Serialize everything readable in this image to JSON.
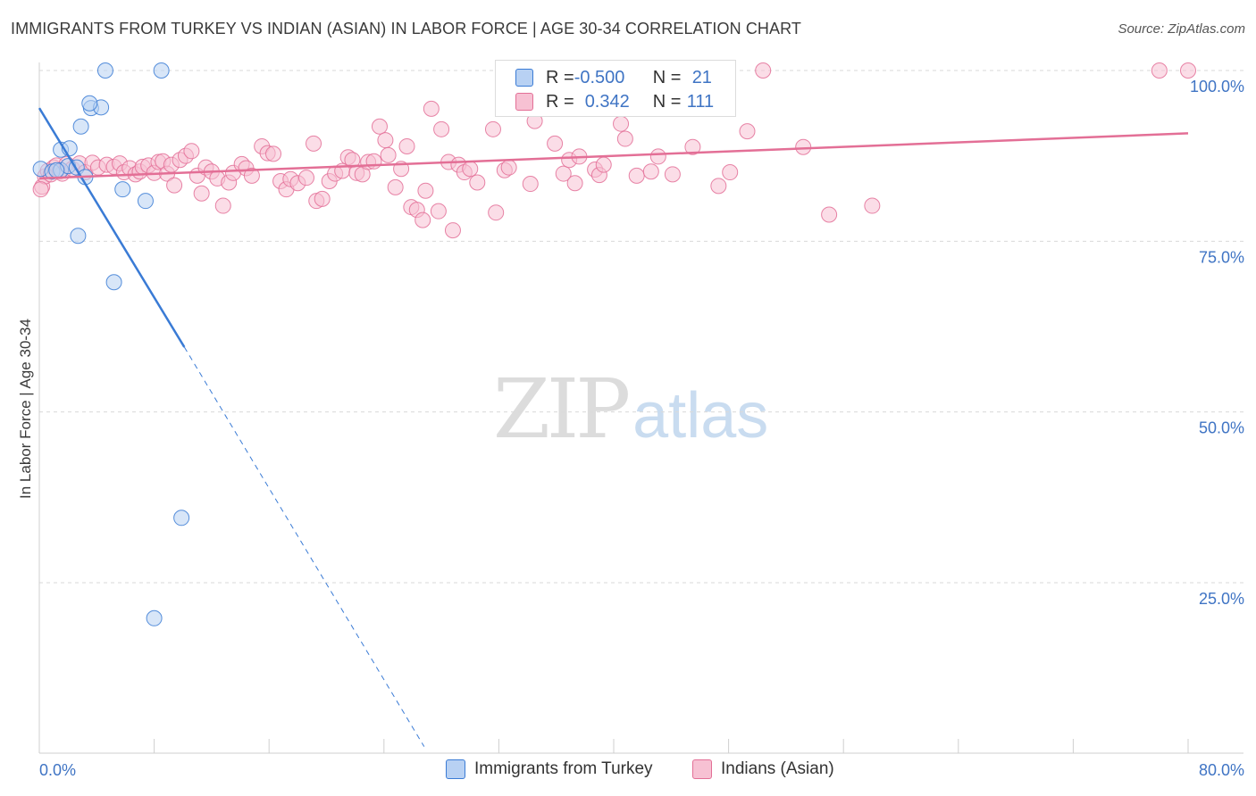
{
  "title": "IMMIGRANTS FROM TURKEY VS INDIAN (ASIAN) IN LABOR FORCE | AGE 30-34 CORRELATION CHART",
  "source": "Source: ZipAtlas.com",
  "watermark": {
    "zip": "ZIP",
    "atlas": "atlas"
  },
  "legend": {
    "rows": [
      {
        "r_label": "R = ",
        "r_value": "-0.500",
        "n_label": "N = ",
        "n_value": "21"
      },
      {
        "r_label": "R = ",
        "r_value": "0.342",
        "n_label": "N = ",
        "n_value": "111"
      }
    ]
  },
  "colors": {
    "blue": "#3a7bd5",
    "blue_fill": "#b8d1f3",
    "pink": "#e36f96",
    "pink_fill": "#f7c1d3",
    "tick_label": "#3f74c4",
    "grid": "#d9d9d9"
  },
  "chart_data": {
    "type": "scatter",
    "title": "IMMIGRANTS FROM TURKEY VS INDIAN (ASIAN) IN LABOR FORCE | AGE 30-34 CORRELATION CHART",
    "xlabel": "",
    "ylabel": "In Labor Force | Age 30-34",
    "xlim": [
      0,
      80
    ],
    "ylim": [
      0,
      101
    ],
    "x_tick_labels": [
      "0.0%",
      "80.0%"
    ],
    "y_ticks": [
      25,
      50,
      75,
      100
    ],
    "y_tick_labels": [
      "25.0%",
      "50.0%",
      "75.0%",
      "100.0%"
    ],
    "grid": true,
    "legend_position": "bottom",
    "series": [
      {
        "name": "Immigrants from Turkey",
        "color": "#3a7bd5",
        "r": -0.5,
        "n": 21,
        "trend": {
          "x0": 0,
          "y0": 94.5,
          "x1": 10.1,
          "y1": 59.5,
          "dashed_to_x": 26.8,
          "dashed_to_y": 1.0
        },
        "points": [
          [
            0.1,
            85.6
          ],
          [
            0.9,
            85.2
          ],
          [
            1.5,
            88.4
          ],
          [
            1.5,
            85.4
          ],
          [
            2.0,
            86.0
          ],
          [
            2.1,
            88.6
          ],
          [
            2.6,
            85.8
          ],
          [
            2.9,
            91.8
          ],
          [
            3.2,
            84.4
          ],
          [
            3.6,
            94.5
          ],
          [
            4.3,
            94.6
          ],
          [
            4.6,
            100.0
          ],
          [
            3.5,
            95.2
          ],
          [
            5.2,
            69.0
          ],
          [
            5.8,
            82.6
          ],
          [
            7.4,
            80.9
          ],
          [
            8.5,
            100.0
          ],
          [
            2.7,
            75.8
          ],
          [
            9.9,
            34.5
          ],
          [
            8.0,
            19.8
          ],
          [
            1.2,
            85.4
          ]
        ]
      },
      {
        "name": "Indians (Asian)",
        "color": "#e36f96",
        "r": 0.342,
        "n": 111,
        "trend": {
          "x0": 0,
          "y0": 84.2,
          "x1": 80,
          "y1": 90.8
        },
        "points": [
          [
            0.2,
            83.0
          ],
          [
            0.4,
            84.5
          ],
          [
            0.6,
            85.3
          ],
          [
            0.8,
            84.8
          ],
          [
            1.0,
            85.8
          ],
          [
            1.2,
            86.1
          ],
          [
            1.4,
            85.2
          ],
          [
            1.6,
            84.9
          ],
          [
            1.9,
            86.3
          ],
          [
            2.3,
            85.6
          ],
          [
            2.8,
            86.4
          ],
          [
            3.2,
            85.1
          ],
          [
            3.7,
            86.5
          ],
          [
            4.1,
            85.8
          ],
          [
            4.7,
            86.2
          ],
          [
            5.2,
            85.9
          ],
          [
            5.6,
            86.4
          ],
          [
            5.9,
            85.1
          ],
          [
            6.3,
            85.7
          ],
          [
            6.7,
            84.8
          ],
          [
            7.0,
            85.2
          ],
          [
            7.2,
            85.9
          ],
          [
            7.6,
            86.1
          ],
          [
            8.0,
            85.0
          ],
          [
            8.3,
            86.6
          ],
          [
            8.6,
            86.7
          ],
          [
            8.9,
            84.9
          ],
          [
            9.2,
            86.2
          ],
          [
            9.4,
            83.2
          ],
          [
            9.8,
            86.9
          ],
          [
            10.2,
            87.5
          ],
          [
            10.6,
            88.2
          ],
          [
            11.0,
            84.6
          ],
          [
            11.3,
            82.0
          ],
          [
            11.6,
            85.8
          ],
          [
            12.0,
            85.2
          ],
          [
            12.4,
            84.2
          ],
          [
            12.8,
            80.2
          ],
          [
            13.2,
            83.6
          ],
          [
            13.5,
            85.0
          ],
          [
            14.1,
            86.3
          ],
          [
            14.4,
            85.7
          ],
          [
            14.8,
            84.6
          ],
          [
            15.5,
            88.9
          ],
          [
            15.9,
            87.9
          ],
          [
            16.3,
            87.8
          ],
          [
            16.8,
            83.8
          ],
          [
            17.2,
            82.6
          ],
          [
            17.5,
            84.1
          ],
          [
            18.0,
            83.5
          ],
          [
            18.6,
            84.3
          ],
          [
            19.1,
            89.3
          ],
          [
            19.3,
            80.9
          ],
          [
            19.7,
            81.2
          ],
          [
            20.2,
            83.8
          ],
          [
            20.6,
            84.9
          ],
          [
            21.1,
            85.3
          ],
          [
            21.5,
            87.3
          ],
          [
            21.8,
            86.9
          ],
          [
            22.1,
            85.0
          ],
          [
            22.5,
            84.8
          ],
          [
            22.9,
            86.6
          ],
          [
            23.3,
            86.7
          ],
          [
            23.7,
            91.8
          ],
          [
            24.1,
            89.8
          ],
          [
            24.3,
            87.6
          ],
          [
            24.8,
            82.9
          ],
          [
            25.2,
            85.6
          ],
          [
            25.6,
            88.9
          ],
          [
            25.9,
            80.0
          ],
          [
            26.3,
            79.6
          ],
          [
            26.7,
            78.1
          ],
          [
            26.9,
            82.4
          ],
          [
            27.3,
            94.4
          ],
          [
            27.8,
            79.4
          ],
          [
            28.0,
            91.4
          ],
          [
            28.5,
            86.6
          ],
          [
            28.8,
            76.6
          ],
          [
            29.2,
            86.2
          ],
          [
            29.6,
            85.1
          ],
          [
            30.0,
            85.6
          ],
          [
            30.5,
            83.6
          ],
          [
            31.6,
            91.4
          ],
          [
            31.8,
            79.2
          ],
          [
            32.4,
            85.4
          ],
          [
            32.7,
            85.8
          ],
          [
            34.2,
            83.4
          ],
          [
            34.5,
            92.6
          ],
          [
            35.9,
            89.3
          ],
          [
            36.5,
            84.9
          ],
          [
            36.9,
            86.9
          ],
          [
            37.3,
            83.5
          ],
          [
            37.6,
            87.4
          ],
          [
            38.7,
            85.5
          ],
          [
            39.0,
            84.7
          ],
          [
            39.3,
            86.2
          ],
          [
            40.5,
            92.2
          ],
          [
            40.8,
            90.0
          ],
          [
            41.6,
            84.6
          ],
          [
            42.6,
            85.2
          ],
          [
            43.1,
            87.4
          ],
          [
            44.1,
            84.8
          ],
          [
            45.5,
            88.8
          ],
          [
            47.3,
            83.1
          ],
          [
            48.1,
            85.1
          ],
          [
            49.3,
            91.1
          ],
          [
            50.4,
            100.0
          ],
          [
            53.2,
            88.8
          ],
          [
            55.0,
            78.9
          ],
          [
            58.0,
            80.2
          ],
          [
            78.0,
            100.0
          ],
          [
            80.0,
            100.0
          ],
          [
            0.1,
            82.6
          ]
        ]
      }
    ]
  }
}
